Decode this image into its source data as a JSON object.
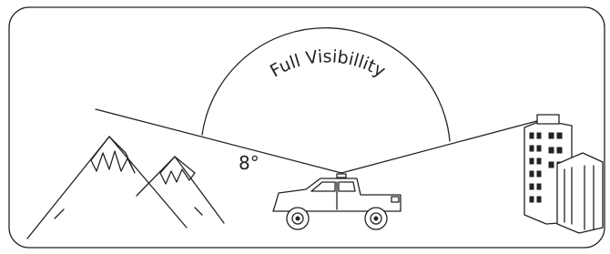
{
  "labels": {
    "arc": "Full Visibillity",
    "angle": "8°"
  }
}
